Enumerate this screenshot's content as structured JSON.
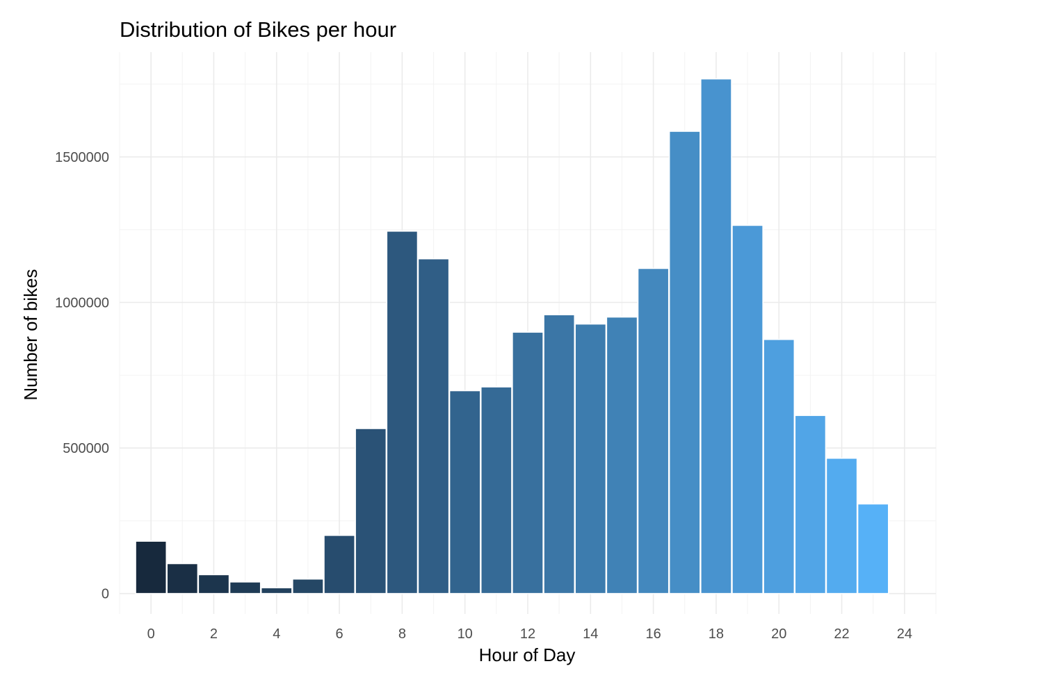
{
  "chart_data": {
    "type": "bar",
    "title": "Distribution of Bikes per hour",
    "xlabel": "Hour of Day",
    "ylabel": "Number of bikes",
    "x": [
      0,
      1,
      2,
      3,
      4,
      5,
      6,
      7,
      8,
      9,
      10,
      11,
      12,
      13,
      14,
      15,
      16,
      17,
      18,
      19,
      20,
      21,
      22,
      23
    ],
    "values": [
      180000,
      103000,
      65000,
      40000,
      20000,
      50000,
      200000,
      567000,
      1245000,
      1150000,
      697000,
      710000,
      898000,
      958000,
      926000,
      950000,
      1117000,
      1588000,
      1768000,
      1265000,
      873000,
      612000,
      465000,
      308000
    ],
    "xlim": [
      -1,
      25
    ],
    "ylim": [
      -70000,
      1860000
    ],
    "x_ticks": [
      0,
      2,
      4,
      6,
      8,
      10,
      12,
      14,
      16,
      18,
      20,
      22,
      24
    ],
    "y_ticks": [
      0,
      500000,
      1000000,
      1500000
    ],
    "y_tick_labels": [
      "0",
      "500000",
      "1000000",
      "1500000"
    ],
    "color_low": "#17293d",
    "color_high": "#56b1f7",
    "grid": true,
    "legend": "none"
  }
}
